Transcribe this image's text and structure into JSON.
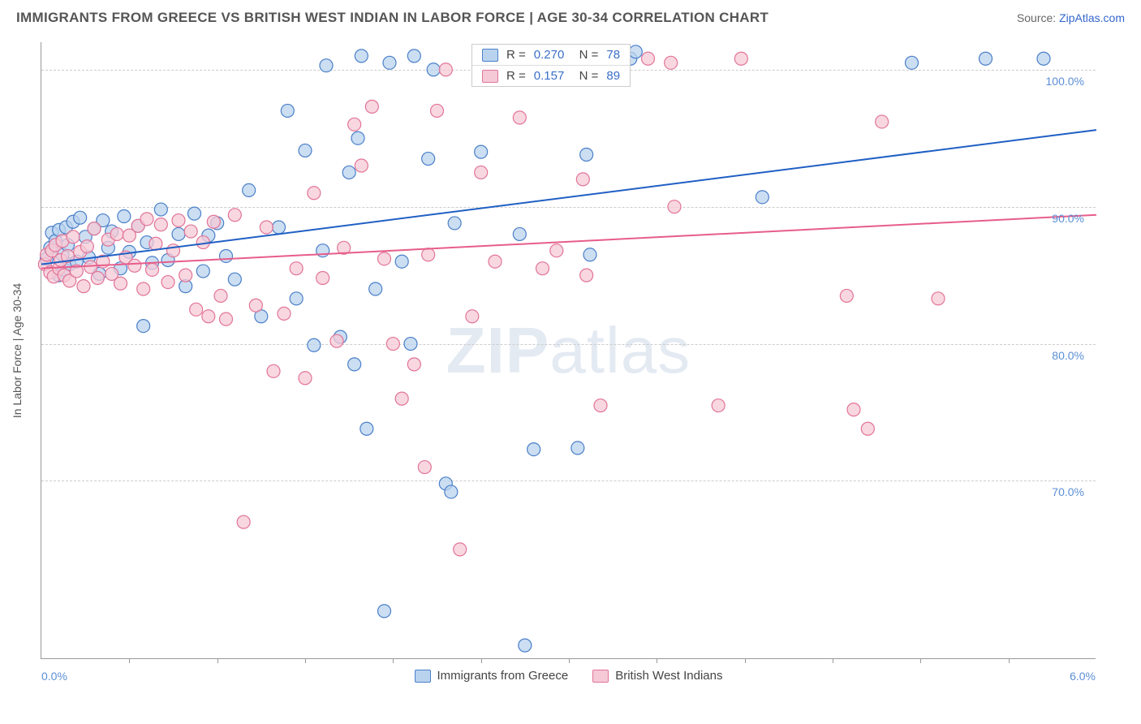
{
  "header": {
    "title": "IMMIGRANTS FROM GREECE VS BRITISH WEST INDIAN IN LABOR FORCE | AGE 30-34 CORRELATION CHART",
    "source_label": "Source:",
    "source_name": "ZipAtlas.com"
  },
  "chart": {
    "type": "scatter",
    "ylabel": "In Labor Force | Age 30-34",
    "xlim": [
      0.0,
      6.0
    ],
    "ylim": [
      57.0,
      102.0
    ],
    "xlim_labels": [
      "0.0%",
      "6.0%"
    ],
    "x_tick_positions": [
      0.5,
      1.0,
      1.5,
      2.0,
      2.5,
      3.0,
      3.5,
      4.0,
      4.5,
      5.0,
      5.5
    ],
    "y_gridlines": [
      70.0,
      80.0,
      90.0,
      100.0
    ],
    "y_tick_labels": [
      "70.0%",
      "80.0%",
      "90.0%",
      "100.0%"
    ],
    "background_color": "#ffffff",
    "grid_color": "#cccccc",
    "axis_color": "#999999",
    "label_fontsize": 14,
    "tick_label_color": "#5b8fd6",
    "marker_radius": 8,
    "marker_stroke_width": 1.2,
    "line_width": 2,
    "watermark": "ZIPatlas",
    "series": [
      {
        "name": "Immigrants from Greece",
        "fill_color": "#b9d3ee",
        "stroke_color": "#4a7fc9",
        "line_color": "#1f5fc4",
        "R": "0.270",
        "N": "78",
        "trend": {
          "x1": 0.0,
          "y1": 85.8,
          "x2": 6.0,
          "y2": 95.6
        },
        "points": [
          [
            0.03,
            86.2
          ],
          [
            0.05,
            87.0
          ],
          [
            0.06,
            88.1
          ],
          [
            0.08,
            87.5
          ],
          [
            0.1,
            85.0
          ],
          [
            0.1,
            88.3
          ],
          [
            0.12,
            86.5
          ],
          [
            0.13,
            85.4
          ],
          [
            0.14,
            88.5
          ],
          [
            0.15,
            87.2
          ],
          [
            0.16,
            85.8
          ],
          [
            0.18,
            88.9
          ],
          [
            0.2,
            86.0
          ],
          [
            0.22,
            89.2
          ],
          [
            0.25,
            87.8
          ],
          [
            0.27,
            86.3
          ],
          [
            0.3,
            88.4
          ],
          [
            0.33,
            85.1
          ],
          [
            0.35,
            89.0
          ],
          [
            0.38,
            87.0
          ],
          [
            0.4,
            88.2
          ],
          [
            0.45,
            85.5
          ],
          [
            0.47,
            89.3
          ],
          [
            0.5,
            86.7
          ],
          [
            0.55,
            88.6
          ],
          [
            0.58,
            81.3
          ],
          [
            0.6,
            87.4
          ],
          [
            0.63,
            85.9
          ],
          [
            0.68,
            89.8
          ],
          [
            0.72,
            86.1
          ],
          [
            0.78,
            88.0
          ],
          [
            0.82,
            84.2
          ],
          [
            0.87,
            89.5
          ],
          [
            0.92,
            85.3
          ],
          [
            0.95,
            87.9
          ],
          [
            1.0,
            88.8
          ],
          [
            1.05,
            86.4
          ],
          [
            1.1,
            84.7
          ],
          [
            1.18,
            91.2
          ],
          [
            1.25,
            82.0
          ],
          [
            1.35,
            88.5
          ],
          [
            1.4,
            97.0
          ],
          [
            1.45,
            83.3
          ],
          [
            1.5,
            94.1
          ],
          [
            1.55,
            79.9
          ],
          [
            1.6,
            86.8
          ],
          [
            1.62,
            100.3
          ],
          [
            1.7,
            80.5
          ],
          [
            1.75,
            92.5
          ],
          [
            1.78,
            78.5
          ],
          [
            1.8,
            95.0
          ],
          [
            1.82,
            101.0
          ],
          [
            1.85,
            73.8
          ],
          [
            1.9,
            84.0
          ],
          [
            1.95,
            60.5
          ],
          [
            1.98,
            100.5
          ],
          [
            2.05,
            86.0
          ],
          [
            2.1,
            80.0
          ],
          [
            2.12,
            101.0
          ],
          [
            2.2,
            93.5
          ],
          [
            2.23,
            100.0
          ],
          [
            2.3,
            69.8
          ],
          [
            2.33,
            69.2
          ],
          [
            2.35,
            88.8
          ],
          [
            2.5,
            94.0
          ],
          [
            2.65,
            100.5
          ],
          [
            2.72,
            88.0
          ],
          [
            2.75,
            58.0
          ],
          [
            2.8,
            72.3
          ],
          [
            3.05,
            72.4
          ],
          [
            3.1,
            93.8
          ],
          [
            3.12,
            86.5
          ],
          [
            3.35,
            100.8
          ],
          [
            3.38,
            101.3
          ],
          [
            4.1,
            90.7
          ],
          [
            4.95,
            100.5
          ],
          [
            5.37,
            100.8
          ],
          [
            5.7,
            100.8
          ]
        ]
      },
      {
        "name": "British West Indians",
        "fill_color": "#f5c9d6",
        "stroke_color": "#e27498",
        "line_color": "#e75d8a",
        "R": "0.157",
        "N": "89",
        "trend": {
          "x1": 0.0,
          "y1": 85.5,
          "x2": 6.0,
          "y2": 89.4
        },
        "points": [
          [
            0.02,
            85.8
          ],
          [
            0.03,
            86.5
          ],
          [
            0.05,
            85.2
          ],
          [
            0.06,
            86.8
          ],
          [
            0.07,
            84.9
          ],
          [
            0.08,
            87.2
          ],
          [
            0.1,
            85.5
          ],
          [
            0.11,
            86.1
          ],
          [
            0.12,
            87.5
          ],
          [
            0.13,
            85.0
          ],
          [
            0.15,
            86.4
          ],
          [
            0.16,
            84.6
          ],
          [
            0.18,
            87.8
          ],
          [
            0.2,
            85.3
          ],
          [
            0.22,
            86.7
          ],
          [
            0.24,
            84.2
          ],
          [
            0.26,
            87.1
          ],
          [
            0.28,
            85.6
          ],
          [
            0.3,
            88.4
          ],
          [
            0.32,
            84.8
          ],
          [
            0.35,
            86.0
          ],
          [
            0.38,
            87.6
          ],
          [
            0.4,
            85.1
          ],
          [
            0.43,
            88.0
          ],
          [
            0.45,
            84.4
          ],
          [
            0.48,
            86.3
          ],
          [
            0.5,
            87.9
          ],
          [
            0.53,
            85.7
          ],
          [
            0.55,
            88.6
          ],
          [
            0.58,
            84.0
          ],
          [
            0.6,
            89.1
          ],
          [
            0.63,
            85.4
          ],
          [
            0.65,
            87.3
          ],
          [
            0.68,
            88.7
          ],
          [
            0.72,
            84.5
          ],
          [
            0.75,
            86.8
          ],
          [
            0.78,
            89.0
          ],
          [
            0.82,
            85.0
          ],
          [
            0.85,
            88.2
          ],
          [
            0.88,
            82.5
          ],
          [
            0.92,
            87.4
          ],
          [
            0.95,
            82.0
          ],
          [
            0.98,
            88.9
          ],
          [
            1.02,
            83.5
          ],
          [
            1.05,
            81.8
          ],
          [
            1.1,
            89.4
          ],
          [
            1.15,
            67.0
          ],
          [
            1.22,
            82.8
          ],
          [
            1.28,
            88.5
          ],
          [
            1.32,
            78.0
          ],
          [
            1.38,
            82.2
          ],
          [
            1.45,
            85.5
          ],
          [
            1.5,
            77.5
          ],
          [
            1.55,
            91.0
          ],
          [
            1.6,
            84.8
          ],
          [
            1.68,
            80.2
          ],
          [
            1.72,
            87.0
          ],
          [
            1.78,
            96.0
          ],
          [
            1.82,
            93.0
          ],
          [
            1.88,
            97.3
          ],
          [
            1.95,
            86.2
          ],
          [
            2.0,
            80.0
          ],
          [
            2.05,
            76.0
          ],
          [
            2.12,
            78.5
          ],
          [
            2.18,
            71.0
          ],
          [
            2.2,
            86.5
          ],
          [
            2.25,
            97.0
          ],
          [
            2.3,
            100.0
          ],
          [
            2.38,
            65.0
          ],
          [
            2.45,
            82.0
          ],
          [
            2.5,
            92.5
          ],
          [
            2.58,
            86.0
          ],
          [
            2.72,
            96.5
          ],
          [
            2.85,
            85.5
          ],
          [
            2.93,
            86.8
          ],
          [
            3.0,
            100.5
          ],
          [
            3.08,
            92.0
          ],
          [
            3.1,
            85.0
          ],
          [
            3.18,
            75.5
          ],
          [
            3.45,
            100.8
          ],
          [
            3.58,
            100.5
          ],
          [
            3.6,
            90.0
          ],
          [
            3.85,
            75.5
          ],
          [
            3.98,
            100.8
          ],
          [
            4.58,
            83.5
          ],
          [
            4.62,
            75.2
          ],
          [
            4.7,
            73.8
          ],
          [
            4.78,
            96.2
          ],
          [
            5.1,
            83.3
          ]
        ]
      }
    ],
    "bottom_legend": [
      {
        "label": "Immigrants from Greece",
        "fill": "#b9d3ee",
        "stroke": "#4a7fc9"
      },
      {
        "label": "British West Indians",
        "fill": "#f5c9d6",
        "stroke": "#e27498"
      }
    ]
  }
}
